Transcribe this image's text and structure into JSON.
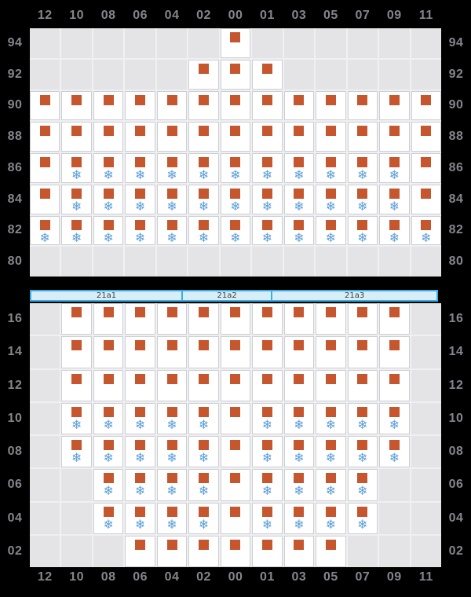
{
  "columns": [
    "12",
    "10",
    "08",
    "06",
    "04",
    "02",
    "00",
    "01",
    "03",
    "05",
    "07",
    "09",
    "11"
  ],
  "icons": {
    "occupied": "container-square-icon",
    "reefer": "reefer-snowflake-icon",
    "snowflake_glyph": "❄"
  },
  "colors": {
    "background": "#000000",
    "occupied_square": "#c6562e",
    "reefer_blue": "#5b9ed8",
    "empty_cell": "#e4e4e7",
    "filled_cell": "#ffffff",
    "cell_border": "#ccced3",
    "axis_label": "#85858d",
    "bay_bar_fill": "#d9edf9",
    "bay_bar_border": "#35b1e4"
  },
  "top_grid": {
    "name": "deck-tier-grid",
    "row_labels": [
      "94",
      "92",
      "90",
      "88",
      "86",
      "84",
      "82",
      "80"
    ],
    "rows": [
      [
        "",
        "",
        "",
        "",
        "",
        "",
        "S",
        "",
        "",
        "",
        "",
        "",
        ""
      ],
      [
        "",
        "",
        "",
        "",
        "",
        "S",
        "S",
        "S",
        "",
        "",
        "",
        "",
        ""
      ],
      [
        "S",
        "S",
        "S",
        "S",
        "S",
        "S",
        "S",
        "S",
        "S",
        "S",
        "S",
        "S",
        "S"
      ],
      [
        "S",
        "S",
        "S",
        "S",
        "S",
        "S",
        "S",
        "S",
        "S",
        "S",
        "S",
        "S",
        "S"
      ],
      [
        "S",
        "SF",
        "SF",
        "SF",
        "SF",
        "SF",
        "SF",
        "SF",
        "SF",
        "SF",
        "SF",
        "SF",
        "S"
      ],
      [
        "S",
        "SF",
        "SF",
        "SF",
        "SF",
        "SF",
        "SF",
        "SF",
        "SF",
        "SF",
        "SF",
        "SF",
        "S"
      ],
      [
        "SF",
        "SF",
        "SF",
        "SF",
        "SF",
        "SF",
        "SF",
        "SF",
        "SF",
        "SF",
        "SF",
        "SF",
        "SF"
      ],
      [
        "",
        "",
        "",
        "",
        "",
        "",
        "",
        "",
        "",
        "",
        "",
        "",
        ""
      ]
    ]
  },
  "bay_bar": {
    "segments": [
      {
        "label": "21a1",
        "width_pct": 37.2
      },
      {
        "label": "21a2",
        "width_pct": 22.2
      },
      {
        "label": "21a3",
        "width_pct": 40.6
      }
    ]
  },
  "bottom_grid": {
    "name": "hold-tier-grid",
    "row_labels": [
      "16",
      "14",
      "12",
      "10",
      "08",
      "06",
      "04",
      "02"
    ],
    "rows": [
      [
        "",
        "S",
        "S",
        "S",
        "S",
        "S",
        "S",
        "S",
        "S",
        "S",
        "S",
        "S",
        ""
      ],
      [
        "",
        "S",
        "S",
        "S",
        "S",
        "S",
        "S",
        "S",
        "S",
        "S",
        "S",
        "S",
        ""
      ],
      [
        "",
        "S",
        "S",
        "S",
        "S",
        "S",
        "S",
        "S",
        "S",
        "S",
        "S",
        "S",
        ""
      ],
      [
        "",
        "SF",
        "SF",
        "SF",
        "SF",
        "SF",
        "S",
        "SF",
        "SF",
        "SF",
        "SF",
        "SF",
        ""
      ],
      [
        "",
        "SF",
        "SF",
        "SF",
        "SF",
        "SF",
        "S",
        "SF",
        "SF",
        "SF",
        "SF",
        "SF",
        ""
      ],
      [
        "",
        "",
        "SF",
        "SF",
        "SF",
        "SF",
        "S",
        "SF",
        "SF",
        "SF",
        "SF",
        "",
        ""
      ],
      [
        "",
        "",
        "SF",
        "SF",
        "SF",
        "SF",
        "S",
        "SF",
        "SF",
        "SF",
        "SF",
        "",
        ""
      ],
      [
        "",
        "",
        "",
        "S",
        "S",
        "S",
        "S",
        "S",
        "S",
        "S",
        "",
        "",
        ""
      ]
    ]
  }
}
